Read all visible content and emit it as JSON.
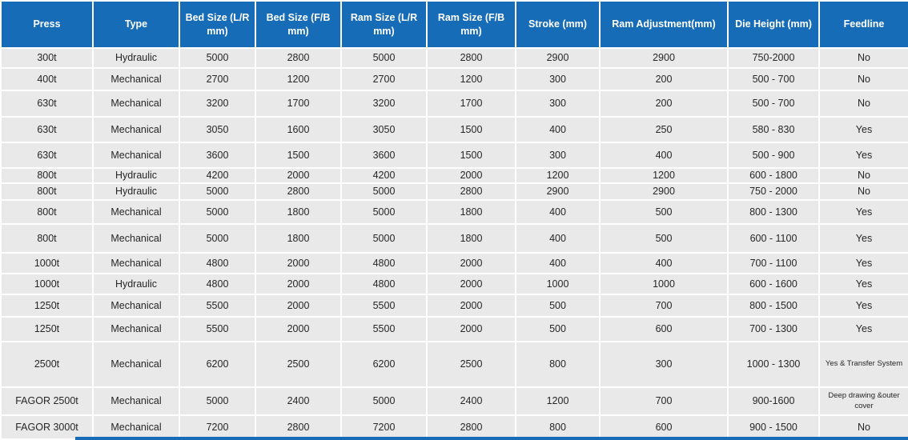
{
  "title": "Press line specifications table",
  "colors": {
    "header_bg": "#176cb8",
    "header_text": "#ffffff",
    "row_bg": "#e9e9e9",
    "grid": "#ffffff",
    "text": "#262626"
  },
  "table": {
    "columns": [
      "Press",
      "Type",
      "Bed Size (L/R mm)",
      "Bed Size (F/B mm)",
      "Ram Size (L/R mm)",
      "Ram Size (F/B mm)",
      "Stroke (mm)",
      "Ram Adjustment(mm)",
      "Die Height (mm)",
      "Feedline"
    ],
    "rows": [
      [
        "300t",
        "Hydraulic",
        "5000",
        "2800",
        "5000",
        "2800",
        "2900",
        "2900",
        "750-2000",
        "No"
      ],
      [
        "400t",
        "Mechanical",
        "2700",
        "1200",
        "2700",
        "1200",
        "300",
        "200",
        "500 - 700",
        "No"
      ],
      [
        "630t",
        "Mechanical",
        "3200",
        "1700",
        "3200",
        "1700",
        "300",
        "200",
        "500 - 700",
        "No"
      ],
      [
        "630t",
        "Mechanical",
        "3050",
        "1600",
        "3050",
        "1500",
        "400",
        "250",
        "580 - 830",
        "Yes"
      ],
      [
        "630t",
        "Mechanical",
        "3600",
        "1500",
        "3600",
        "1500",
        "300",
        "400",
        "500 - 900",
        "Yes"
      ],
      [
        "800t",
        "Hydraulic",
        "4200",
        "2000",
        "4200",
        "2000",
        "1200",
        "1200",
        "600 - 1800",
        "No"
      ],
      [
        "800t",
        "Hydraulic",
        "5000",
        "2800",
        "5000",
        "2800",
        "2900",
        "2900",
        "750 - 2000",
        "No"
      ],
      [
        "800t",
        "Mechanical",
        "5000",
        "1800",
        "5000",
        "1800",
        "400",
        "500",
        "800 - 1300",
        "Yes"
      ],
      [
        "800t",
        "Mechanical",
        "5000",
        "1800",
        "5000",
        "1800",
        "400",
        "500",
        "600 - 1100",
        "Yes"
      ],
      [
        "1000t",
        "Mechanical",
        "4800",
        "2000",
        "4800",
        "2000",
        "400",
        "400",
        "700 - 1100",
        "Yes"
      ],
      [
        "1000t",
        "Hydraulic",
        "4800",
        "2000",
        "4800",
        "2000",
        "1000",
        "1000",
        "600 - 1600",
        "Yes"
      ],
      [
        "1250t",
        "Mechanical",
        "5500",
        "2000",
        "5500",
        "2000",
        "500",
        "700",
        "800 - 1500",
        "Yes"
      ],
      [
        "1250t",
        "Mechanical",
        "5500",
        "2000",
        "5500",
        "2000",
        "500",
        "600",
        "700 - 1300",
        "Yes"
      ],
      [
        "2500t",
        "Mechanical",
        "6200",
        "2500",
        "6200",
        "2500",
        "800",
        "300",
        "1000 - 1300",
        "Yes & Transfer System"
      ],
      [
        "FAGOR 2500t",
        "Mechanical",
        "5000",
        "2400",
        "5000",
        "2400",
        "1200",
        "700",
        "900-1600",
        "Deep drawing &outer cover"
      ],
      [
        "FAGOR 3000t",
        "Mechanical",
        "7200",
        "2800",
        "7200",
        "2800",
        "800",
        "600",
        "900 - 1500",
        "No"
      ]
    ]
  }
}
